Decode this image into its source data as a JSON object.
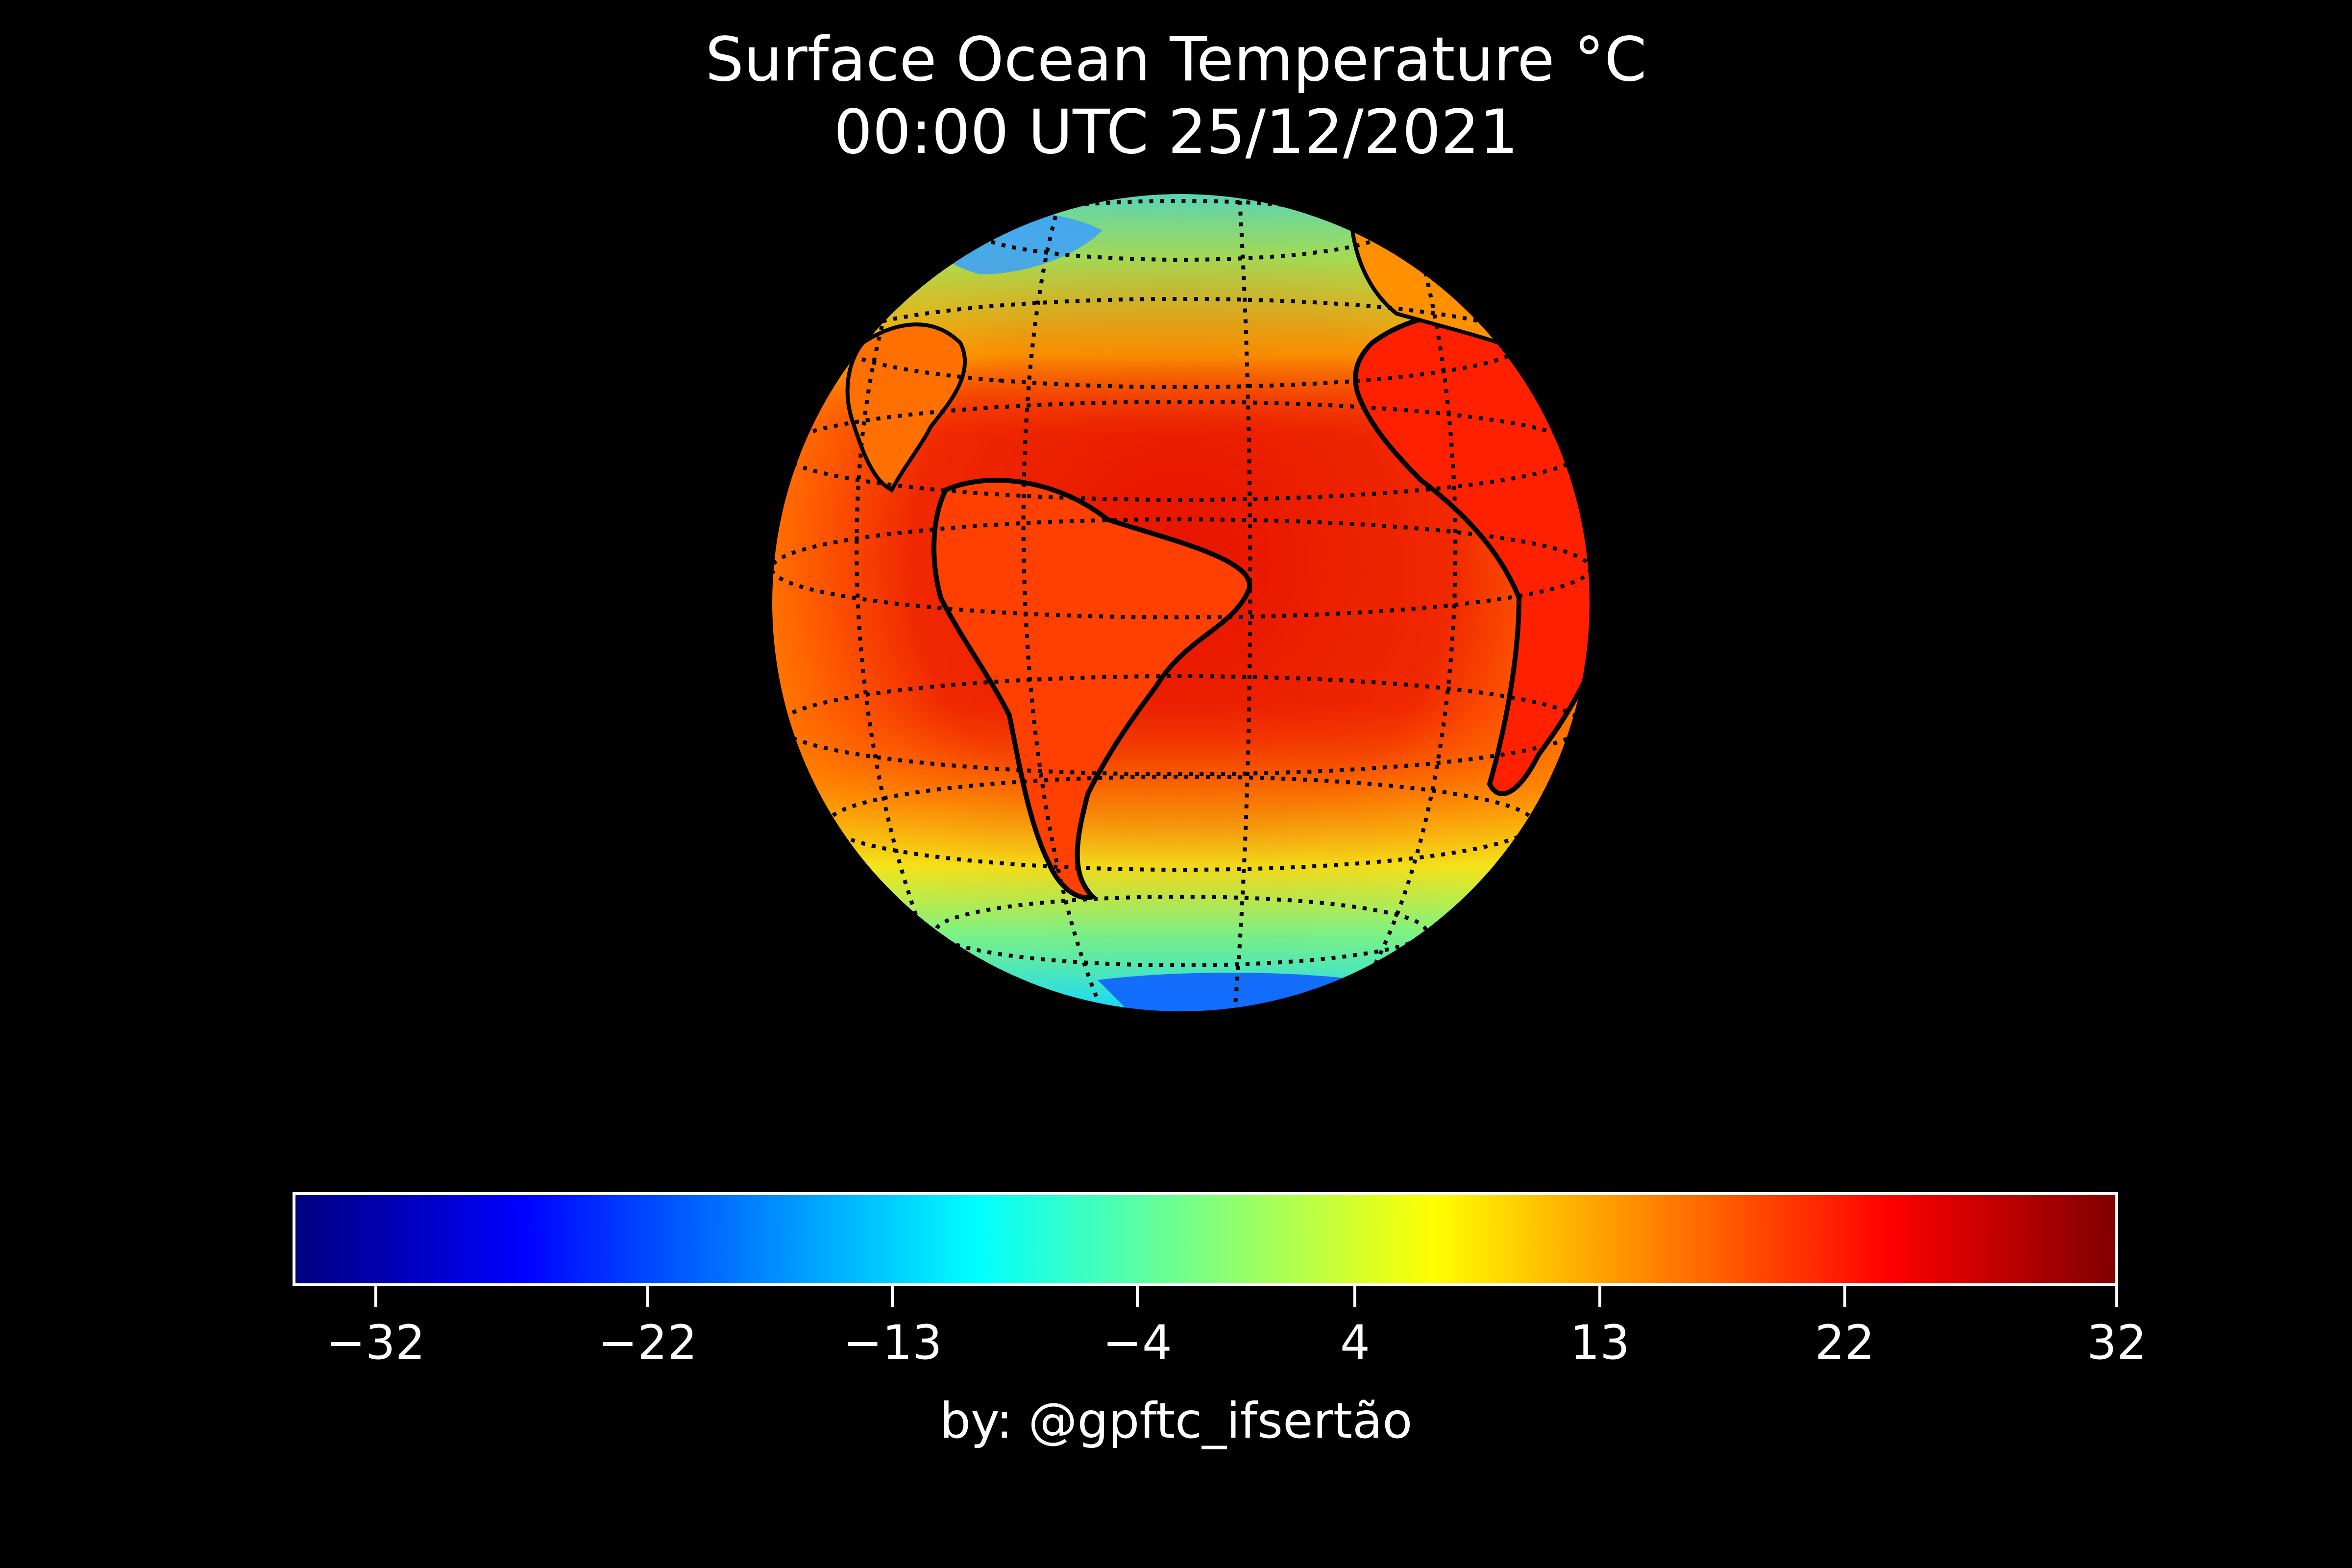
{
  "title": {
    "line1": "Surface Ocean Temperature °C",
    "line2": "00:00 UTC 25/12/2021"
  },
  "map": {
    "projection": "orthographic",
    "center": "South Atlantic",
    "gridlines": "dotted",
    "coastlines": true,
    "country_borders": true,
    "background": "#000000"
  },
  "colorbar": {
    "colormap": "jet",
    "orientation": "horizontal",
    "range": [
      -35,
      32
    ],
    "ticks": [
      {
        "value": -32,
        "label": "−32"
      },
      {
        "value": -22,
        "label": "−22"
      },
      {
        "value": -13,
        "label": "−13"
      },
      {
        "value": -4,
        "label": "−4"
      },
      {
        "value": 4,
        "label": "4"
      },
      {
        "value": 13,
        "label": "13"
      },
      {
        "value": 22,
        "label": "22"
      },
      {
        "value": 32,
        "label": "32"
      }
    ],
    "colors": [
      "#00007f",
      "#0000ff",
      "#007fff",
      "#00ffff",
      "#7fff7f",
      "#ffff00",
      "#ff7f00",
      "#ff0000",
      "#7f0000"
    ]
  },
  "credit": "by: @gpftc_ifsertão"
}
